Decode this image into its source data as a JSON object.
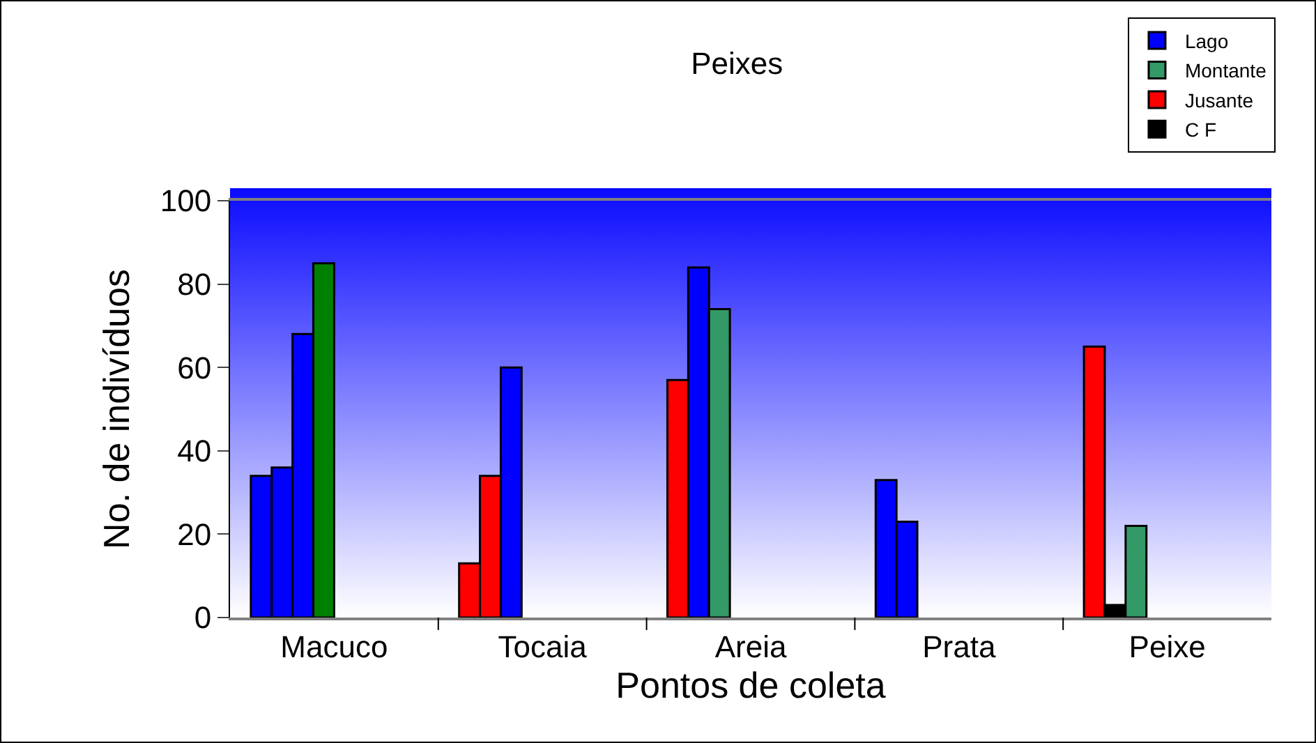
{
  "chart_data": {
    "type": "bar",
    "title": "Peixes",
    "xlabel": "Pontos de coleta",
    "ylabel": "No. de indivíduos",
    "categories": [
      "Macuco",
      "Tocaia",
      "Areia",
      "Prata",
      "Peixe"
    ],
    "series": [
      {
        "colors": [
          "#0000ff",
          "#ff0000",
          "#ff0000",
          "#0000ff",
          "#ff0000"
        ],
        "values": [
          34,
          13,
          57,
          33,
          65
        ]
      },
      {
        "colors": [
          "#0000ff",
          "#ff0000",
          "#0000ff",
          "#0000ff",
          "#000000"
        ],
        "values": [
          36,
          34,
          84,
          23,
          3
        ]
      },
      {
        "colors": [
          "#0000ff",
          "#0000ff",
          "#339966",
          "#0000ff",
          "#339966"
        ],
        "values": [
          68,
          60,
          74,
          null,
          22
        ]
      },
      {
        "colors": [
          "#008000",
          "#008000",
          "#008000",
          "#008000",
          "#008000"
        ],
        "values": [
          85,
          null,
          null,
          null,
          null
        ]
      },
      {
        "name": "Lago",
        "color": "#0000ff",
        "values": [
          null,
          null,
          null,
          null,
          null
        ]
      },
      {
        "name": "Montante",
        "color": "#339966",
        "values": [
          null,
          null,
          null,
          null,
          null
        ]
      },
      {
        "name": "Jusante",
        "color": "#ff0000",
        "values": [
          null,
          null,
          null,
          null,
          null
        ]
      },
      {
        "name": "C F",
        "color": "#000000",
        "values": [
          null,
          null,
          null,
          null,
          null
        ]
      }
    ],
    "ylim": [
      0,
      100
    ],
    "yticks": [
      0,
      20,
      40,
      60,
      80,
      100
    ],
    "grid": false,
    "legend": "top right"
  }
}
